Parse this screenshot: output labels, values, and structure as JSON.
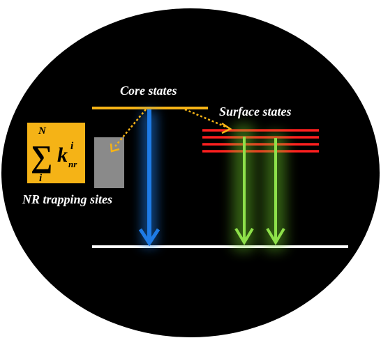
{
  "diagram": {
    "labels": {
      "core_states": "Core states",
      "surface_states": "Surface states",
      "nr_trapping_sites": "NR trapping sites"
    },
    "formula": {
      "sum_symbol": "∑",
      "upper_limit": "N",
      "lower_limit": "i",
      "variable": "k",
      "superscript": "i",
      "subscript": "nr"
    },
    "surface_state_level_count": 4,
    "colors": {
      "background_ellipse": "#000000",
      "core_level": "#f5b316",
      "surface_levels": "#ff1f1f",
      "ground_level": "#ffffff",
      "core_emission_arrow": "#1e7be6",
      "surface_emission_arrows": "#8ee04a",
      "trap_arrows": "#f5b316",
      "trap_box": "#8a8a8a",
      "formula_box": "#f5b316"
    }
  }
}
